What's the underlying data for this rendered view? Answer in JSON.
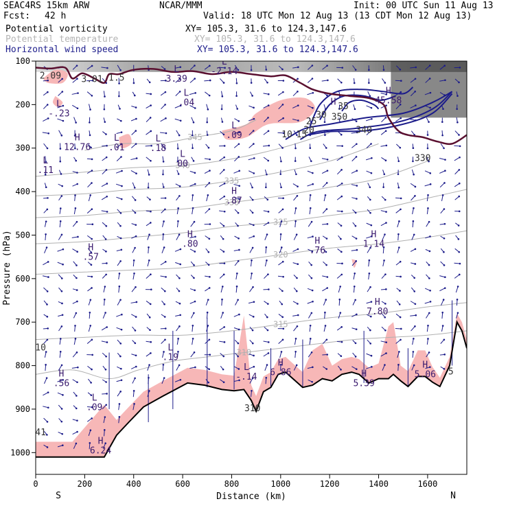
{
  "header": {
    "model": "SEAC4RS 15km ARW",
    "org": "NCAR/MMM",
    "init": "Init: 00 UTC Sun 11 Aug 13",
    "fcst_label": "Fcst:",
    "fcst_value": "42 h",
    "valid": "Valid: 18 UTC Mon 12 Aug 13 (13 CDT Mon 12 Aug 13)"
  },
  "legend": [
    {
      "label": "Potential vorticity",
      "xy": "XY= 105.3, 31.6 to 124.3,147.6",
      "color": "#000000"
    },
    {
      "label": "Potential temperature",
      "xy": "XY= 105.3, 31.6 to 124.3,147.6",
      "color": "#b4b4b4"
    },
    {
      "label": "Horizontal wind speed",
      "xy": "XY= 105.3, 31.6 to 124.3,147.6",
      "color": "#1e1e8c"
    }
  ],
  "colors": {
    "pv_shade": "#f7b7b7",
    "theta": "#b0b0b0",
    "wind": "#1c1c8a",
    "tropopause": "#5a1030",
    "labels": "#3a1a6e",
    "terrain": "#000000"
  },
  "chart_data": {
    "type": "cross-section",
    "xlabel": "Distance (km)",
    "ylabel": "Pressure (hPa)",
    "x_range": [
      0,
      1760
    ],
    "y_range": [
      1050,
      100
    ],
    "x_ticks": [
      0,
      200,
      400,
      600,
      800,
      1000,
      1200,
      1400,
      1600
    ],
    "y_ticks": [
      100,
      200,
      300,
      400,
      500,
      600,
      700,
      800,
      900,
      1000
    ],
    "endpoint_left": "S",
    "endpoint_right": "N",
    "terrain": [
      [
        0,
        1010
      ],
      [
        150,
        1010
      ],
      [
        280,
        1010
      ],
      [
        330,
        960
      ],
      [
        380,
        930
      ],
      [
        440,
        895
      ],
      [
        520,
        870
      ],
      [
        570,
        855
      ],
      [
        620,
        840
      ],
      [
        690,
        845
      ],
      [
        760,
        855
      ],
      [
        810,
        858
      ],
      [
        850,
        855
      ],
      [
        880,
        880
      ],
      [
        900,
        905
      ],
      [
        930,
        860
      ],
      [
        960,
        850
      ],
      [
        990,
        820
      ],
      [
        1020,
        815
      ],
      [
        1060,
        835
      ],
      [
        1090,
        850
      ],
      [
        1130,
        845
      ],
      [
        1170,
        830
      ],
      [
        1210,
        835
      ],
      [
        1250,
        820
      ],
      [
        1290,
        815
      ],
      [
        1320,
        820
      ],
      [
        1360,
        840
      ],
      [
        1400,
        830
      ],
      [
        1440,
        830
      ],
      [
        1460,
        820
      ],
      [
        1490,
        835
      ],
      [
        1520,
        848
      ],
      [
        1560,
        825
      ],
      [
        1590,
        825
      ],
      [
        1620,
        838
      ],
      [
        1650,
        848
      ],
      [
        1690,
        800
      ],
      [
        1720,
        700
      ],
      [
        1740,
        720
      ],
      [
        1760,
        760
      ]
    ],
    "theta_contours": [
      {
        "value": "345",
        "pts": [
          [
            200,
            305
          ],
          [
            350,
            290
          ],
          [
            500,
            290
          ],
          [
            650,
            275
          ],
          [
            800,
            260
          ],
          [
            900,
            235
          ]
        ]
      },
      {
        "value": "340",
        "pts": [
          [
            0,
            365
          ],
          [
            200,
            355
          ],
          [
            400,
            345
          ],
          [
            600,
            340
          ],
          [
            800,
            325
          ],
          [
            1000,
            300
          ],
          [
            1200,
            265
          ]
        ]
      },
      {
        "value": "335",
        "pts": [
          [
            0,
            410
          ],
          [
            200,
            405
          ],
          [
            400,
            395
          ],
          [
            600,
            390
          ],
          [
            800,
            375
          ],
          [
            1000,
            355
          ],
          [
            1200,
            330
          ],
          [
            1400,
            290
          ]
        ]
      },
      {
        "value": "330",
        "pts": [
          [
            0,
            460
          ],
          [
            200,
            455
          ],
          [
            400,
            445
          ],
          [
            600,
            440
          ],
          [
            800,
            425
          ],
          [
            1000,
            410
          ],
          [
            1200,
            390
          ],
          [
            1400,
            370
          ],
          [
            1600,
            330
          ]
        ]
      },
      {
        "value": "325",
        "pts": [
          [
            0,
            520
          ],
          [
            200,
            515
          ],
          [
            400,
            505
          ],
          [
            600,
            495
          ],
          [
            800,
            480
          ],
          [
            1000,
            470
          ],
          [
            1200,
            455
          ],
          [
            1400,
            440
          ],
          [
            1600,
            415
          ],
          [
            1760,
            395
          ]
        ]
      },
      {
        "value": "320",
        "pts": [
          [
            0,
            590
          ],
          [
            200,
            585
          ],
          [
            400,
            580
          ],
          [
            600,
            575
          ],
          [
            800,
            560
          ],
          [
            1000,
            545
          ],
          [
            1200,
            530
          ],
          [
            1400,
            520
          ],
          [
            1600,
            505
          ],
          [
            1760,
            490
          ]
        ]
      },
      {
        "value": "315",
        "pts": [
          [
            0,
            740
          ],
          [
            200,
            735
          ],
          [
            400,
            730
          ],
          [
            600,
            730
          ],
          [
            800,
            720
          ],
          [
            1000,
            705
          ],
          [
            1200,
            690
          ],
          [
            1400,
            680
          ],
          [
            1600,
            665
          ],
          [
            1760,
            655
          ]
        ]
      },
      {
        "value": "310",
        "pts": [
          [
            0,
            820
          ],
          [
            150,
            810
          ],
          [
            300,
            830
          ],
          [
            420,
            810
          ],
          [
            560,
            790
          ],
          [
            700,
            780
          ],
          [
            850,
            770
          ],
          [
            1000,
            760
          ],
          [
            1150,
            750
          ],
          [
            1300,
            740
          ],
          [
            1450,
            735
          ],
          [
            1600,
            730
          ],
          [
            1760,
            720
          ]
        ]
      }
    ],
    "wind_contours": [
      {
        "value": "10",
        "pts": [
          [
            1020,
            280
          ],
          [
            1100,
            255
          ],
          [
            1200,
            245
          ],
          [
            1350,
            230
          ],
          [
            1500,
            220
          ],
          [
            1620,
            195
          ],
          [
            1700,
            170
          ]
        ]
      },
      {
        "value": "15",
        "pts": [
          [
            1080,
            280
          ],
          [
            1150,
            262
          ],
          [
            1300,
            255
          ],
          [
            1480,
            240
          ],
          [
            1620,
            210
          ],
          [
            1700,
            170
          ]
        ]
      },
      {
        "value": "20",
        "pts": [
          [
            1110,
            270
          ],
          [
            1200,
            262
          ],
          [
            1350,
            260
          ],
          [
            1500,
            245
          ],
          [
            1620,
            220
          ],
          [
            1700,
            175
          ]
        ]
      },
      {
        "value": "25",
        "pts": [
          [
            1120,
            250
          ],
          [
            1160,
            200
          ],
          [
            1230,
            170
          ],
          [
            1330,
            165
          ],
          [
            1420,
            170
          ],
          [
            1500,
            175
          ],
          [
            1540,
            160
          ]
        ]
      },
      {
        "value": "30",
        "pts": [
          [
            1160,
            235
          ],
          [
            1200,
            200
          ],
          [
            1260,
            180
          ],
          [
            1340,
            180
          ],
          [
            1410,
            190
          ],
          [
            1470,
            180
          ]
        ]
      },
      {
        "value": "35",
        "pts": [
          [
            1250,
            215
          ],
          [
            1280,
            195
          ],
          [
            1330,
            190
          ],
          [
            1380,
            200
          ],
          [
            1400,
            210
          ]
        ]
      }
    ],
    "labels": [
      {
        "text": "L",
        "sub": "-2.14",
        "x": 770,
        "y": 108
      },
      {
        "text": "L",
        "sub": "3.39",
        "x": 575,
        "y": 125
      },
      {
        "text": "L",
        "sub": ".04",
        "x": 615,
        "y": 180
      },
      {
        "text": "L",
        "sub": "-.23",
        "x": 95,
        "y": 205
      },
      {
        "text": "H",
        "sub": "12.76",
        "x": 170,
        "y": 282
      },
      {
        "text": "L",
        "sub": ".01",
        "x": 330,
        "y": 283
      },
      {
        "text": "L",
        "sub": ".18",
        "x": 500,
        "y": 285
      },
      {
        "text": "L",
        "sub": "00",
        "x": 600,
        "y": 320
      },
      {
        "text": "L",
        "sub": ".11",
        "x": 40,
        "y": 335
      },
      {
        "text": "L",
        "sub": ".09",
        "x": 810,
        "y": 255
      },
      {
        "text": "H",
        "sub": ".87",
        "x": 810,
        "y": 405
      },
      {
        "text": "H",
        "sub": ".80",
        "x": 630,
        "y": 505
      },
      {
        "text": "H",
        "sub": ".57",
        "x": 225,
        "y": 535
      },
      {
        "text": "H",
        "sub": ".76",
        "x": 1150,
        "y": 520
      },
      {
        "text": "H",
        "sub": "1.14",
        "x": 1380,
        "y": 505
      },
      {
        "text": "H",
        "sub": "7.80",
        "x": 1395,
        "y": 660
      },
      {
        "text": "L",
        "sub": ".19",
        "x": 550,
        "y": 765
      },
      {
        "text": "L",
        "sub": "-.14",
        "x": 860,
        "y": 810
      },
      {
        "text": "H",
        "sub": "6.86",
        "x": 1000,
        "y": 800
      },
      {
        "text": "H",
        "sub": ".56",
        "x": 105,
        "y": 825
      },
      {
        "text": "H",
        "sub": "5.39",
        "x": 1340,
        "y": 825
      },
      {
        "text": "H",
        "sub": "5.06",
        "x": 1590,
        "y": 805
      },
      {
        "text": "L",
        "sub": ".09",
        "x": 240,
        "y": 880
      },
      {
        "text": "H",
        "sub": "6.24",
        "x": 265,
        "y": 980
      },
      {
        "text": "H",
        "sub": "45.58",
        "x": 1440,
        "y": 175
      },
      {
        "text": "H",
        "sub": "",
        "x": 1215,
        "y": 200
      }
    ],
    "pv_labels": [
      {
        "text": "2.09",
        "x": 60,
        "y": 140
      },
      {
        "text": "3.01",
        "x": 230,
        "y": 148
      },
      {
        "text": "1.5",
        "x": 330,
        "y": 145
      },
      {
        "text": "310",
        "x": 885,
        "y": 905
      },
      {
        "text": "41",
        "x": 20,
        "y": 960
      },
      {
        "text": "10",
        "x": 20,
        "y": 765
      },
      {
        "text": "350",
        "x": 1240,
        "y": 235
      },
      {
        "text": "340",
        "x": 1340,
        "y": 265
      },
      {
        "text": "330",
        "x": 1580,
        "y": 330
      },
      {
        "text": "5",
        "x": 1695,
        "y": 820
      }
    ]
  }
}
